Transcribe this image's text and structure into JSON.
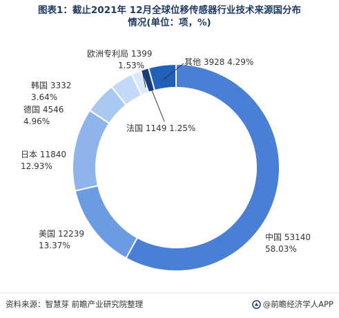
{
  "title_line1": "图表1：截止2021年 12月全球位移传感器行业技术来源国分布",
  "title_line2": "情况(单位：项，%)",
  "chart_data": {
    "type": "pie",
    "donut": true,
    "title": "图表1：截止2021年 12月全球位移传感器行业技术来源国分布情况(单位：项，%)",
    "slices": [
      {
        "label": "中国",
        "value": 53140,
        "percent": "58.03%",
        "color": "#4a7fd6"
      },
      {
        "label": "美国",
        "value": 12239,
        "percent": "13.37%",
        "color": "#6b9be3"
      },
      {
        "label": "日本",
        "value": 11840,
        "percent": "12.93%",
        "color": "#8fb4ec"
      },
      {
        "label": "德国",
        "value": 4546,
        "percent": "4.96%",
        "color": "#a9c8f2"
      },
      {
        "label": "韩国",
        "value": 3332,
        "percent": "3.64%",
        "color": "#c3d9f7"
      },
      {
        "label": "欧洲专利局",
        "value": 1399,
        "percent": "1.53%",
        "color": "#dbe8fb"
      },
      {
        "label": "法国",
        "value": 1149,
        "percent": "1.25%",
        "color": "#163f80"
      },
      {
        "label": "其他",
        "value": 3928,
        "percent": "4.29%",
        "color": "#2060b8"
      }
    ]
  },
  "footer": {
    "source": "资料来源：智慧芽 前瞻产业研究院整理",
    "brand": "@前瞻经济学人APP"
  }
}
